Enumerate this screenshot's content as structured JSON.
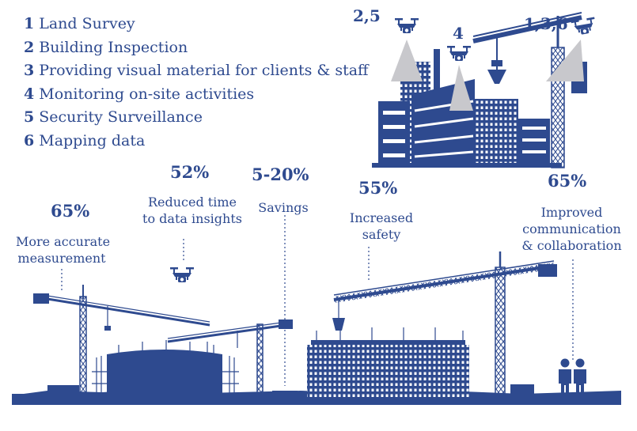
{
  "colors": {
    "primary": "#2E4A8F",
    "grey": "#C8C8CC",
    "white": "#FFFFFF"
  },
  "legend": [
    {
      "num": "1",
      "text": "Land Survey"
    },
    {
      "num": "2",
      "text": "Building Inspection"
    },
    {
      "num": "3",
      "text": "Providing visual material for clients & staff"
    },
    {
      "num": "4",
      "text": "Monitoring on-site activities"
    },
    {
      "num": "5",
      "text": "Security Surveillance"
    },
    {
      "num": "6",
      "text": "Mapping data"
    }
  ],
  "drone_labels": [
    "2,5",
    "4",
    "1,3,6"
  ],
  "stats": [
    {
      "value": "65%",
      "caption": [
        "More accurate",
        "measurement"
      ]
    },
    {
      "value": "52%",
      "caption": [
        "Reduced time",
        "to data insights"
      ]
    },
    {
      "value": "5-20%",
      "caption": [
        "Savings"
      ]
    },
    {
      "value": "55%",
      "caption": [
        "Increased",
        "safety"
      ]
    },
    {
      "value": "65%",
      "caption": [
        "Improved",
        "communication",
        "& collaboration"
      ]
    }
  ],
  "icons": {
    "drone": "drone-icon",
    "people": "people-icon",
    "crane": "tower-crane-icon"
  }
}
